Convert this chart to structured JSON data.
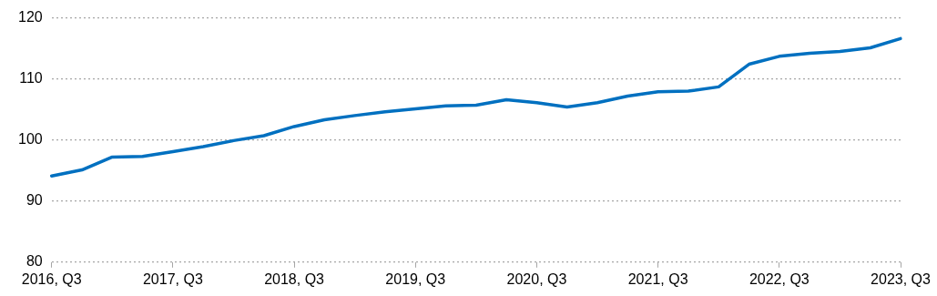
{
  "chart_data": {
    "type": "line",
    "categories": [
      "2016, Q3",
      null,
      null,
      null,
      "2017, Q3",
      null,
      null,
      null,
      "2018, Q3",
      null,
      null,
      null,
      "2019, Q3",
      null,
      null,
      null,
      "2020, Q3",
      null,
      null,
      null,
      "2021, Q3",
      null,
      null,
      null,
      "2022, Q3",
      null,
      null,
      null,
      "2023, Q3"
    ],
    "series": [
      {
        "color": "#0070c0",
        "values": [
          94.1,
          95.1,
          97.2,
          97.3,
          98.1,
          98.9,
          99.9,
          100.7,
          102.2,
          103.3,
          104.0,
          104.6,
          105.1,
          105.6,
          105.7,
          106.6,
          106.1,
          105.4,
          106.1,
          107.2,
          107.9,
          108.0,
          108.7,
          112.4,
          113.7,
          114.2,
          114.5,
          115.1,
          116.6
        ]
      }
    ],
    "ylim": [
      80,
      120
    ],
    "yticks": [
      80,
      90,
      100,
      110,
      120
    ],
    "grid": "y",
    "legend": false,
    "marker": "none",
    "line_style": "solid"
  }
}
